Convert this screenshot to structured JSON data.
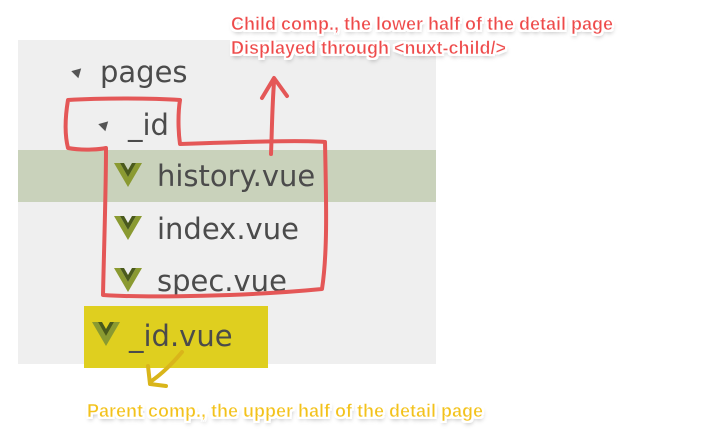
{
  "tree": {
    "root": {
      "label": "pages",
      "icon": "expanded-triangle-icon"
    },
    "folder": {
      "label": "_id",
      "icon": "expanded-triangle-icon"
    },
    "children": [
      {
        "label": "history.vue",
        "icon": "vue-icon",
        "selected": true
      },
      {
        "label": "index.vue",
        "icon": "vue-icon",
        "selected": false
      },
      {
        "label": "spec.vue",
        "icon": "vue-icon",
        "selected": false
      }
    ],
    "parent_file": {
      "label": "_id.vue",
      "icon": "vue-icon"
    }
  },
  "annotations": {
    "child": {
      "line1": "Child comp., the lower half of the detail page",
      "line2": "Displayed through <nuxt-child/>",
      "color": "#ee4a4a"
    },
    "parent": {
      "line1": "Parent comp., the upper half of the detail page",
      "color": "#f3c21b"
    }
  },
  "colors": {
    "panel_bg": "#efefef",
    "selected_row": "#c9d2bb",
    "highlight_yellow": "#dfcf1f",
    "vue_green": "#8a9a31",
    "vue_dark": "#4a5a1c",
    "text": "#4b4b4b"
  }
}
